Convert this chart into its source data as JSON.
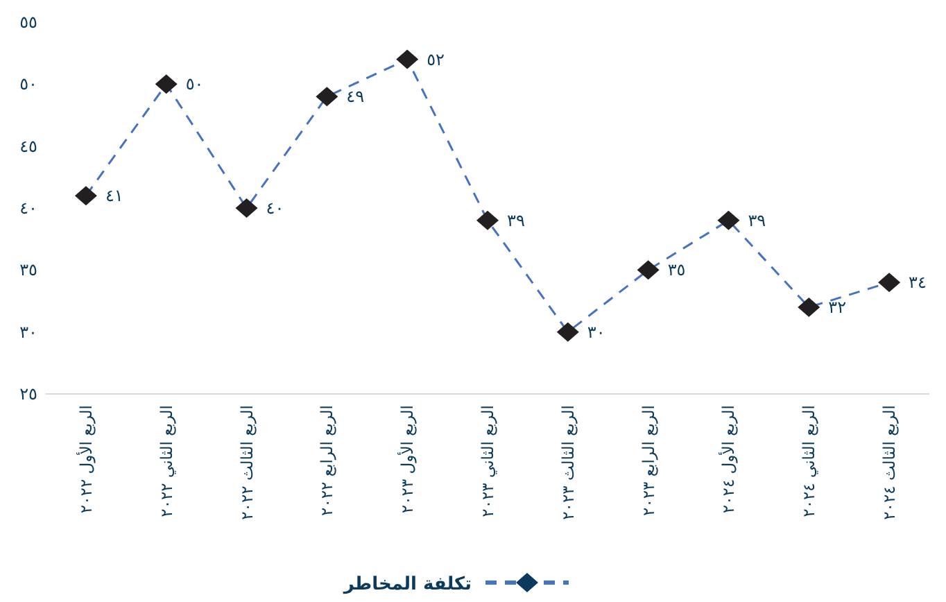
{
  "chart_data": {
    "type": "line",
    "categories": [
      "الربع الأول ٢٠٢٢",
      "الربع الثاني ٢٠٢٢",
      "الربع الثالث ٢٠٢٢",
      "الربع الرابع ٢٠٢٢",
      "الربع الأول ٢٠٢٣",
      "الربع الثاني ٢٠٢٣",
      "الربع الثالث ٢٠٢٣",
      "الربع الرابع ٢٠٢٣",
      "الربع الأول ٢٠٢٤",
      "الربع الثاني ٢٠٢٤",
      "الربع الثالث ٢٠٢٤"
    ],
    "series": [
      {
        "name": "تكلفة المخاطر",
        "color": "#4472c4",
        "values": [
          41,
          50,
          40,
          49,
          52,
          39,
          30,
          35,
          39,
          32,
          34
        ],
        "value_labels": [
          "٤١",
          "٥٠",
          "٤٠",
          "٤٩",
          "٥٢",
          "٣٩",
          "٣٠",
          "٣٥",
          "٣٩",
          "٣٢",
          "٣٤"
        ]
      }
    ],
    "ylim": [
      25,
      55
    ],
    "yticks": [
      {
        "value": 25,
        "label": "٢٥"
      },
      {
        "value": 30,
        "label": "٣٠"
      },
      {
        "value": 35,
        "label": "٣٥"
      },
      {
        "value": 40,
        "label": "٤٠"
      },
      {
        "value": 45,
        "label": "٤٥"
      },
      {
        "value": 50,
        "label": "٥٠"
      },
      {
        "value": 55,
        "label": "٥٥"
      }
    ],
    "marker": "diamond",
    "line_style": "dashed",
    "grid": false,
    "legend": "bottom"
  }
}
